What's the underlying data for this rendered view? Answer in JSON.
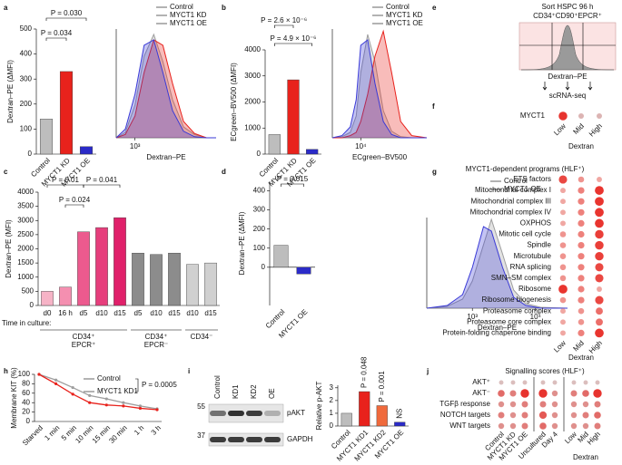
{
  "chart_data": [
    {
      "type": "bar",
      "label": "a",
      "ylabel": "Dextran–PE (ΔMFI)",
      "categories": [
        "Control",
        "MYCT1 KD",
        "MYCT1 OE"
      ],
      "values": [
        140,
        330,
        30
      ],
      "colors": [
        "#bdbdbd",
        "#e8221c",
        "#2b2bc8"
      ],
      "ylim": [
        0,
        500
      ],
      "yticks": [
        0,
        100,
        200,
        300,
        400,
        500
      ],
      "annotations": [
        "P = 0.030",
        "P = 0.034"
      ]
    },
    {
      "type": "density",
      "xlabel": "Dextran–PE",
      "x": [
        500,
        700,
        1000,
        1400,
        2000,
        2800,
        4000,
        6000,
        9000,
        14000,
        20000
      ],
      "xlim": [
        500,
        20000
      ],
      "xticks": [
        {
          "value": 1000,
          "label": "10³"
        }
      ],
      "ylim": [
        0,
        100
      ],
      "xlog": true,
      "series": [
        {
          "name": "Control",
          "color": "#9e9e9e",
          "values": [
            0,
            5,
            30,
            75,
            95,
            70,
            35,
            10,
            3,
            0,
            0
          ]
        },
        {
          "name": "MYCT1 KD",
          "color": "#e8221c",
          "values": [
            0,
            3,
            20,
            60,
            90,
            85,
            50,
            15,
            4,
            0,
            0
          ]
        },
        {
          "name": "MYCT1 OE",
          "color": "#3a3ad6",
          "values": [
            0,
            8,
            40,
            85,
            90,
            60,
            25,
            6,
            1,
            0,
            0
          ]
        }
      ]
    },
    {
      "type": "bar",
      "label": "b",
      "ylabel": "ECgreen–BV500 (ΔMFI)",
      "categories": [
        "Control",
        "MYCT1 KD",
        "MYCT1 OE"
      ],
      "values": [
        750,
        2850,
        180
      ],
      "colors": [
        "#bdbdbd",
        "#e8221c",
        "#2b2bc8"
      ],
      "ylim": [
        0,
        4000
      ],
      "yticks": [
        0,
        1000,
        2000,
        3000,
        4000
      ],
      "annotations": [
        "P = 2.6 × 10⁻⁶",
        "P = 4.9 × 10⁻⁶"
      ]
    },
    {
      "type": "density",
      "xlabel": "ECgreen–BV500",
      "x": [
        2500,
        4000,
        6000,
        8000,
        10000,
        14000,
        20000,
        30000,
        45000,
        70000,
        120000,
        250000
      ],
      "xlim": [
        2500,
        250000
      ],
      "xticks": [
        {
          "value": 10000,
          "label": "10⁴"
        }
      ],
      "ylim": [
        0,
        100
      ],
      "xlog": true,
      "series": [
        {
          "name": "Control",
          "color": "#9e9e9e",
          "values": [
            0,
            1,
            5,
            20,
            60,
            95,
            70,
            25,
            6,
            1,
            0,
            0
          ]
        },
        {
          "name": "MYCT1 KD",
          "color": "#e8221c",
          "values": [
            0,
            0,
            2,
            5,
            15,
            40,
            75,
            98,
            60,
            15,
            2,
            0
          ]
        },
        {
          "name": "MYCT1 OE",
          "color": "#3a3ad6",
          "values": [
            0,
            2,
            10,
            35,
            85,
            90,
            50,
            15,
            3,
            0,
            0,
            0
          ]
        }
      ]
    },
    {
      "type": "schematic",
      "label": "e",
      "title": "Sort HSPC 96 h",
      "subtitle": "CD34⁺CD90⁺EPCR⁺",
      "xlabel": "Dextran–PE",
      "output": "scRNA-seq"
    },
    {
      "type": "dotplot",
      "label": "f",
      "rows": [
        "MYCT1"
      ],
      "columns": [
        "Low",
        "Mid",
        "High"
      ],
      "xlabel": "Dextran",
      "values": [
        [
          0.9,
          0.2,
          0.2
        ]
      ],
      "colors": [
        "#d9d9d9",
        "#e8221c"
      ]
    },
    {
      "type": "bar",
      "label": "c",
      "ylabel": "Dextran–PE (MFI)",
      "categories": [
        "d0",
        "16 h",
        "d5",
        "d10",
        "d15",
        "d5",
        "d10",
        "d15",
        "d10",
        "d15"
      ],
      "values": [
        500,
        650,
        2600,
        2750,
        3100,
        1850,
        1800,
        1850,
        1450,
        1500
      ],
      "colors": [
        "#f6b3c6",
        "#f48fb0",
        "#ec5a8e",
        "#e63e7c",
        "#e0206a",
        "#8c8c8c",
        "#8c8c8c",
        "#8c8c8c",
        "#d0d0d0",
        "#d0d0d0"
      ],
      "ylim": [
        0,
        4000
      ],
      "yticks": [
        0,
        500,
        1000,
        1500,
        2000,
        2500,
        3000,
        3500,
        4000
      ],
      "annotations": [
        "P = 0.01",
        "P = 0.041",
        "P = 0.024"
      ],
      "time_label": "Time in culture:",
      "groups": [
        [
          "CD34⁺",
          "EPCR⁺"
        ],
        [
          "CD34⁺",
          "EPCR⁻"
        ],
        [
          "CD34⁻"
        ]
      ]
    },
    {
      "type": "bar",
      "label": "d",
      "ylabel": "Dextran–PE (ΔMFI)",
      "categories": [
        "Control",
        "MYCT1 OE"
      ],
      "values": [
        115,
        -35
      ],
      "colors": [
        "#bdbdbd",
        "#2b2bc8"
      ],
      "ylim": [
        -200,
        450
      ],
      "yticks": [
        0,
        100,
        200,
        300,
        400
      ],
      "annotations": [
        "P = 0.015"
      ]
    },
    {
      "type": "density",
      "xlabel": "Dextran–PE",
      "x": [
        190,
        400,
        700,
        1000,
        1500,
        2000,
        3000,
        4500,
        7000,
        12000,
        32000
      ],
      "xlim": [
        190,
        32000
      ],
      "xticks": [
        {
          "value": 1000,
          "label": "10³"
        },
        {
          "value": 10000,
          "label": "10⁴"
        }
      ],
      "ylim": [
        0,
        100
      ],
      "xlog": true,
      "series": [
        {
          "name": "Control",
          "color": "#9e9e9e",
          "values": [
            0,
            2,
            10,
            30,
            70,
            98,
            60,
            20,
            5,
            1,
            0
          ]
        },
        {
          "name": "MYCT1 OE",
          "color": "#3a3ad6",
          "values": [
            0,
            3,
            15,
            45,
            90,
            85,
            45,
            12,
            3,
            0,
            0
          ]
        }
      ]
    },
    {
      "type": "dotplot",
      "label": "g",
      "title": "MYCT1-dependent programs (HLF⁺)",
      "rows": [
        "ETS factors",
        "Mitochondrial complex I",
        "Mitochondrial complex III",
        "Mitochondrial complex IV",
        "OXPHOS",
        "Mitotic cell cycle",
        "Spindle",
        "Microtubule",
        "RNA splicing",
        "SMN–SM complex",
        "Ribosome",
        "Ribosome biogenesis",
        "Proteasome complex",
        "Proteasome core complex",
        "Protein-folding chaperone binding"
      ],
      "columns": [
        "Low",
        "Mid",
        "High"
      ],
      "xlabel": "Dextran",
      "values": [
        [
          0.8,
          0.4,
          0.3
        ],
        [
          0.3,
          0.5,
          0.9
        ],
        [
          0.3,
          0.5,
          0.9
        ],
        [
          0.3,
          0.5,
          0.9
        ],
        [
          0.3,
          0.5,
          0.9
        ],
        [
          0.4,
          0.5,
          0.85
        ],
        [
          0.4,
          0.5,
          0.85
        ],
        [
          0.4,
          0.5,
          0.85
        ],
        [
          0.4,
          0.5,
          0.8
        ],
        [
          0.4,
          0.5,
          0.8
        ],
        [
          0.9,
          0.5,
          0.3
        ],
        [
          0.4,
          0.5,
          0.8
        ],
        [
          0.3,
          0.4,
          0.6
        ],
        [
          0.3,
          0.4,
          0.6
        ],
        [
          0.3,
          0.5,
          0.9
        ]
      ],
      "colors": [
        "#f3e0dc",
        "#e8221c"
      ]
    },
    {
      "type": "line",
      "label": "h",
      "ylabel": "Membrane KIT (%)",
      "categories": [
        "Starved",
        "1 min",
        "5 min",
        "10 min",
        "15 min",
        "30 min",
        "1 h",
        "3 h"
      ],
      "ylim": [
        0,
        100
      ],
      "yticks": [
        0,
        20,
        40,
        60,
        80,
        100
      ],
      "annotations": [
        "P = 0.0005"
      ],
      "series": [
        {
          "name": "Control",
          "color": "#9e9e9e",
          "values": [
            100,
            88,
            72,
            55,
            48,
            40,
            33,
            27
          ]
        },
        {
          "name": "MYCT1 KD1",
          "color": "#e8221c",
          "values": [
            100,
            80,
            58,
            40,
            35,
            33,
            28,
            25
          ]
        }
      ]
    },
    {
      "type": "blot",
      "label": "i",
      "lanes": [
        "Control",
        "KD1",
        "KD2",
        "OE"
      ],
      "bands": [
        "pAKT",
        "GAPDH"
      ],
      "markers": [
        "55",
        "37"
      ]
    },
    {
      "type": "bar",
      "ylabel": "Relative p-AKT",
      "categories": [
        "Control",
        "MYCT1 KD1",
        "MYCT1 KD2",
        "MYCT1 OE"
      ],
      "values": [
        1,
        2.7,
        1.6,
        0.3
      ],
      "colors": [
        "#bdbdbd",
        "#e8221c",
        "#f06a3c",
        "#2b2bc8"
      ],
      "ylim": [
        0,
        3.2
      ],
      "yticks": [
        0,
        1,
        2,
        3
      ],
      "annotations": [
        "P = 0.048",
        "P = 0.001",
        "NS"
      ]
    },
    {
      "type": "dotplot",
      "label": "j",
      "title": "Signalling scores (HLF⁺)",
      "rows": [
        "AKT⁺",
        "AKT⁻",
        "TGFβ response",
        "NOTCH targets",
        "WNT targets"
      ],
      "columns": [
        "Control",
        "MYCT1 KD",
        "MYCT1 OE",
        "Uncultured",
        "Day 4",
        "Low",
        "Mid",
        "High"
      ],
      "xlabel": "Dextran",
      "values": [
        [
          0.15,
          0.15,
          0.15,
          0.15,
          0.15,
          0.15,
          0.15,
          0.15
        ],
        [
          0.6,
          0.5,
          0.9,
          0.9,
          0.4,
          0.5,
          0.6,
          0.9
        ],
        [
          0.4,
          0.4,
          0.5,
          0.5,
          0.4,
          0.4,
          0.4,
          0.5
        ],
        [
          0.5,
          0.4,
          0.5,
          0.7,
          0.4,
          0.4,
          0.5,
          0.6
        ],
        [
          0.4,
          0.4,
          0.5,
          0.6,
          0.4,
          0.4,
          0.4,
          0.5
        ]
      ],
      "colors": [
        "#d9d9d9",
        "#e8221c"
      ]
    }
  ]
}
